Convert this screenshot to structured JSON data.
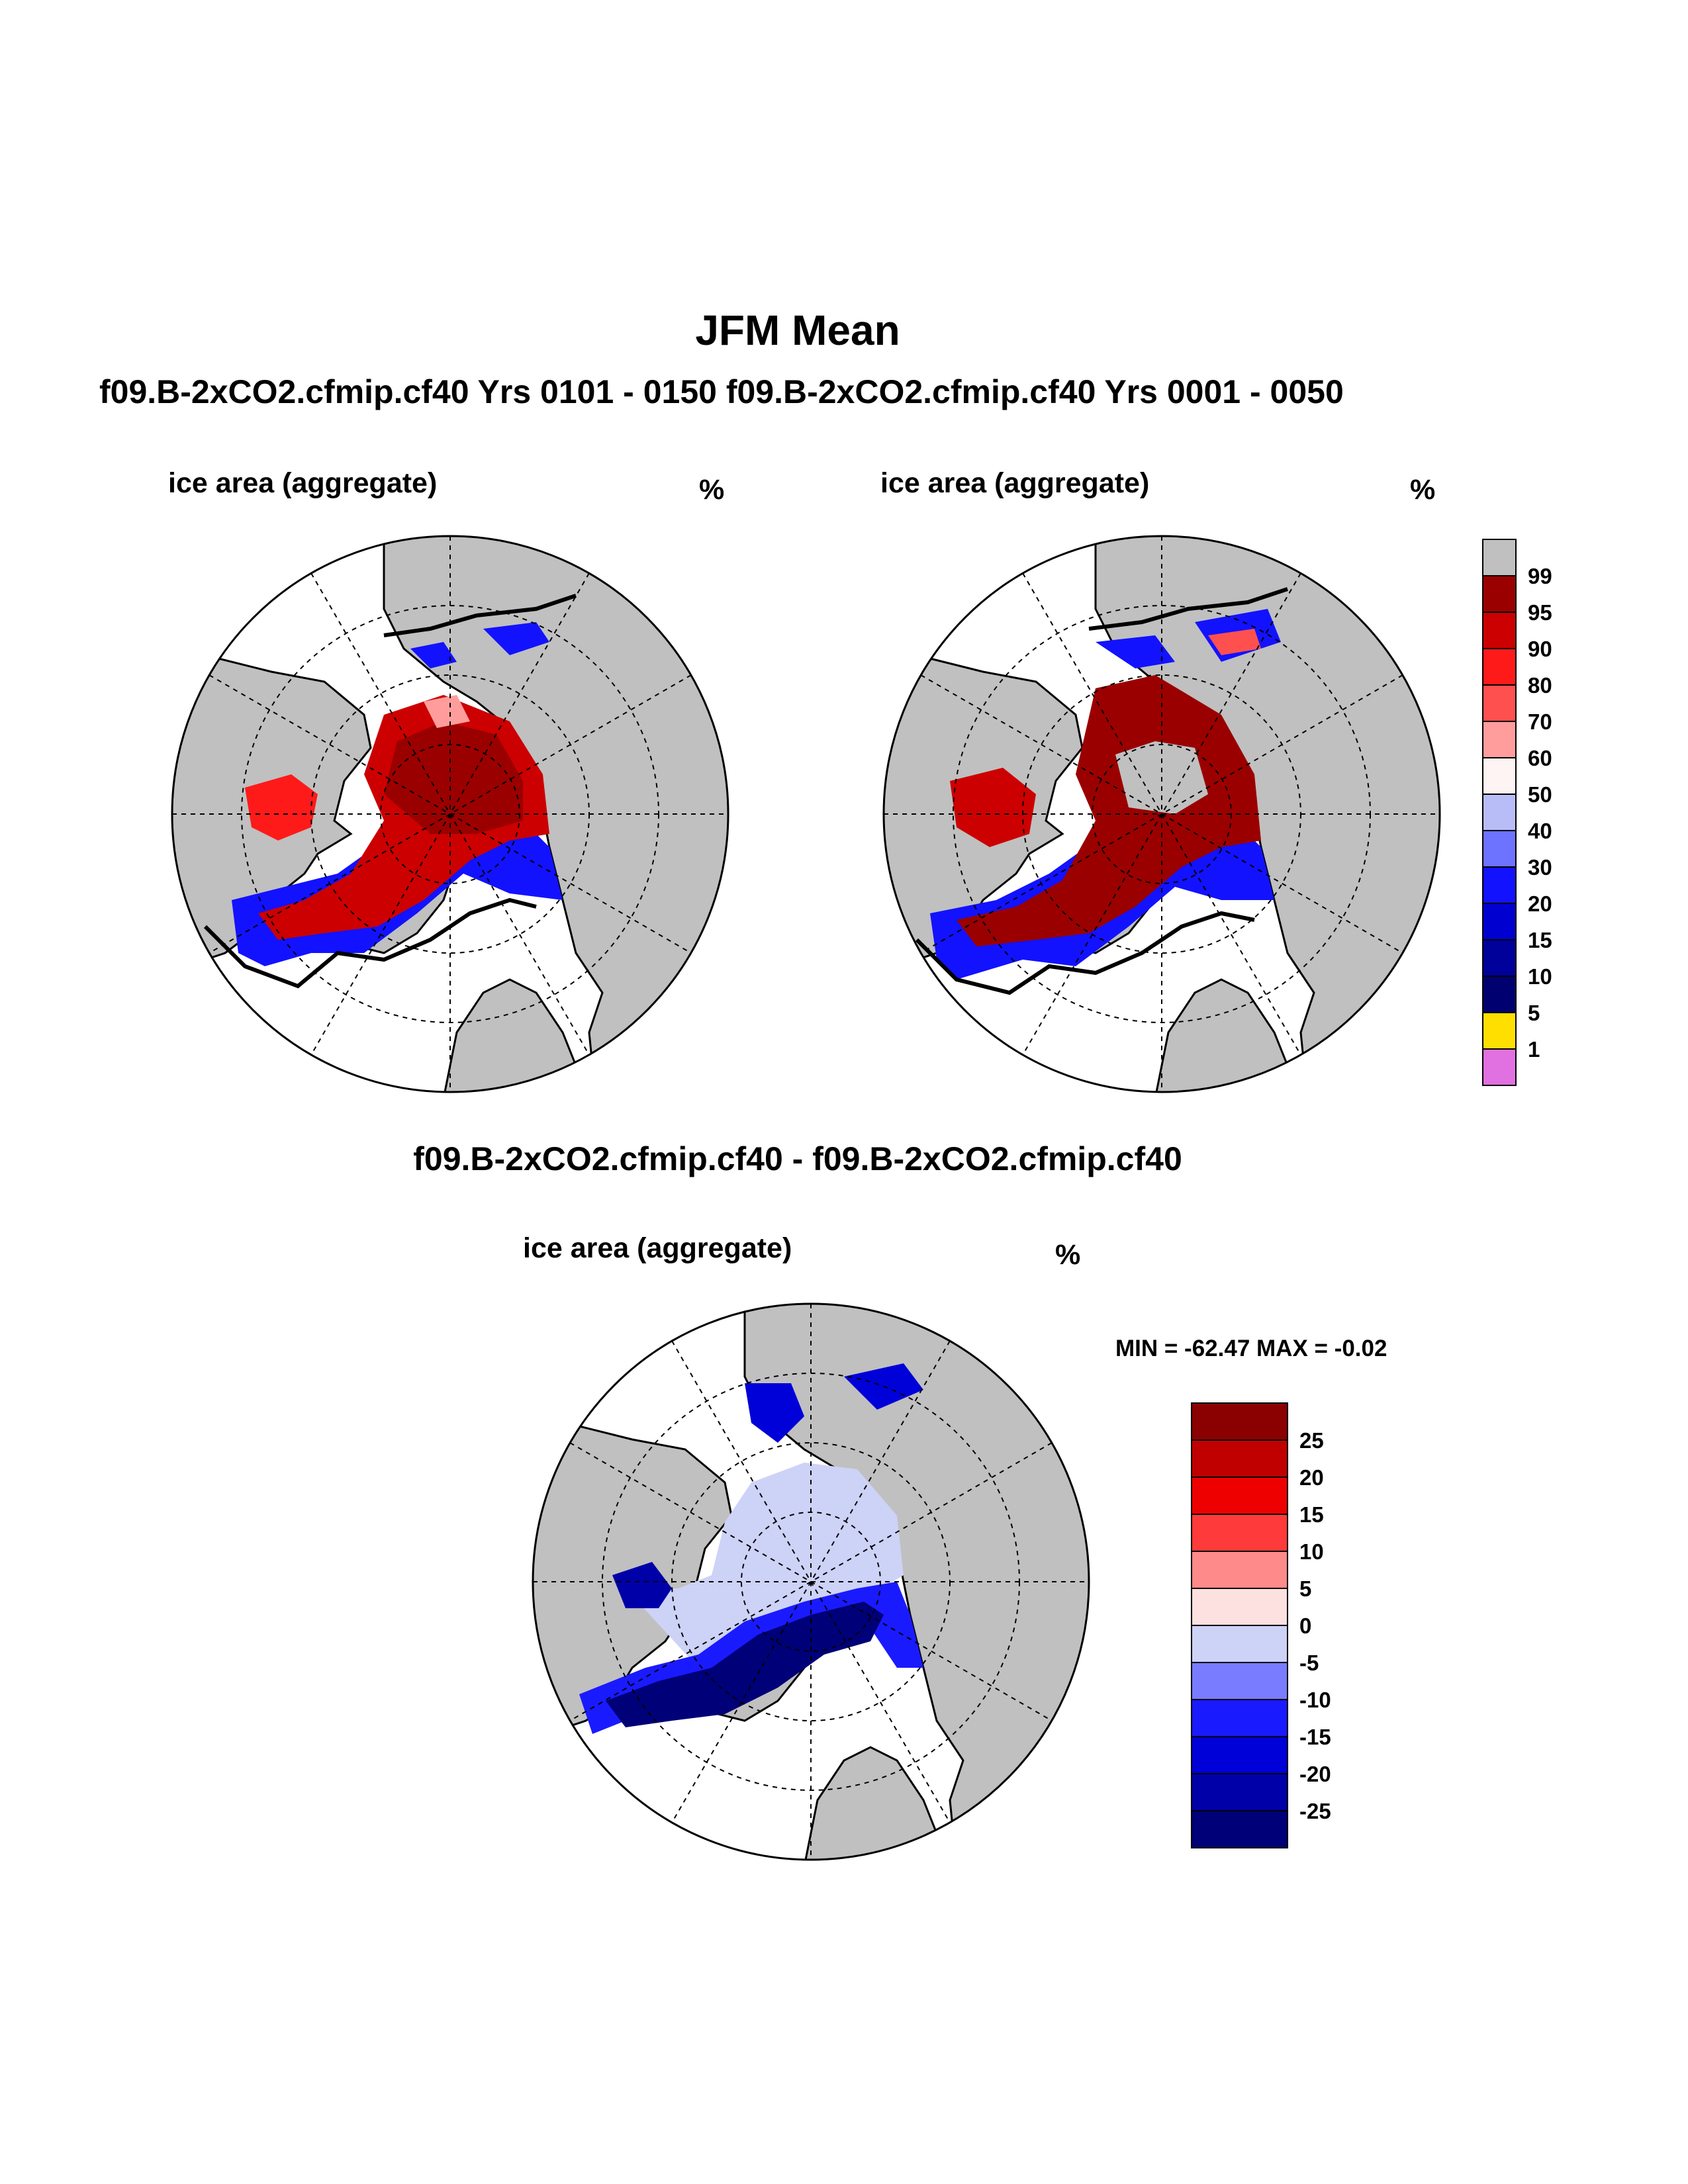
{
  "title": "JFM Mean",
  "subtitle": "f09.B-2xCO2.cfmip.cf40  Yrs 0101 - 0150 f09.B-2xCO2.cfmip.cf40  Yrs 0001 - 0050",
  "panels": [
    {
      "left_label": "ice area  (aggregate)",
      "right_label": "%"
    },
    {
      "left_label": "ice area  (aggregate)",
      "right_label": "%"
    }
  ],
  "diff": {
    "title": "f09.B-2xCO2.cfmip.cf40 - f09.B-2xCO2.cfmip.cf40",
    "left_label": "ice area  (aggregate)",
    "right_label": "%",
    "minmax": "MIN = -62.47 MAX =  -0.02"
  },
  "colorbar_top": {
    "labels": [
      "99",
      "95",
      "90",
      "80",
      "70",
      "60",
      "50",
      "40",
      "30",
      "20",
      "15",
      "10",
      "5",
      "1"
    ],
    "colors": [
      "#c0c0c0",
      "#9b0000",
      "#cc0000",
      "#ff1a1a",
      "#ff5050",
      "#ff9d9d",
      "#fff4f4",
      "#b9bdf7",
      "#6d72ff",
      "#1212ff",
      "#0000d0",
      "#00009a",
      "#000070",
      "#ffdf00",
      "#e170e0"
    ]
  },
  "colorbar_diff": {
    "labels": [
      "25",
      "20",
      "15",
      "10",
      "5",
      "0",
      "-5",
      "-10",
      "-15",
      "-20",
      "-25"
    ],
    "colors": [
      "#8b0000",
      "#c00000",
      "#ee0000",
      "#ff3a3a",
      "#ff8a8a",
      "#fde0e0",
      "#cdd2f7",
      "#7a7cff",
      "#1a1aff",
      "#0000d8",
      "#0000a8",
      "#000078"
    ]
  },
  "colors": {
    "land": "#c0c0c0",
    "ocean": "#ffffff",
    "coast": "#000000"
  }
}
